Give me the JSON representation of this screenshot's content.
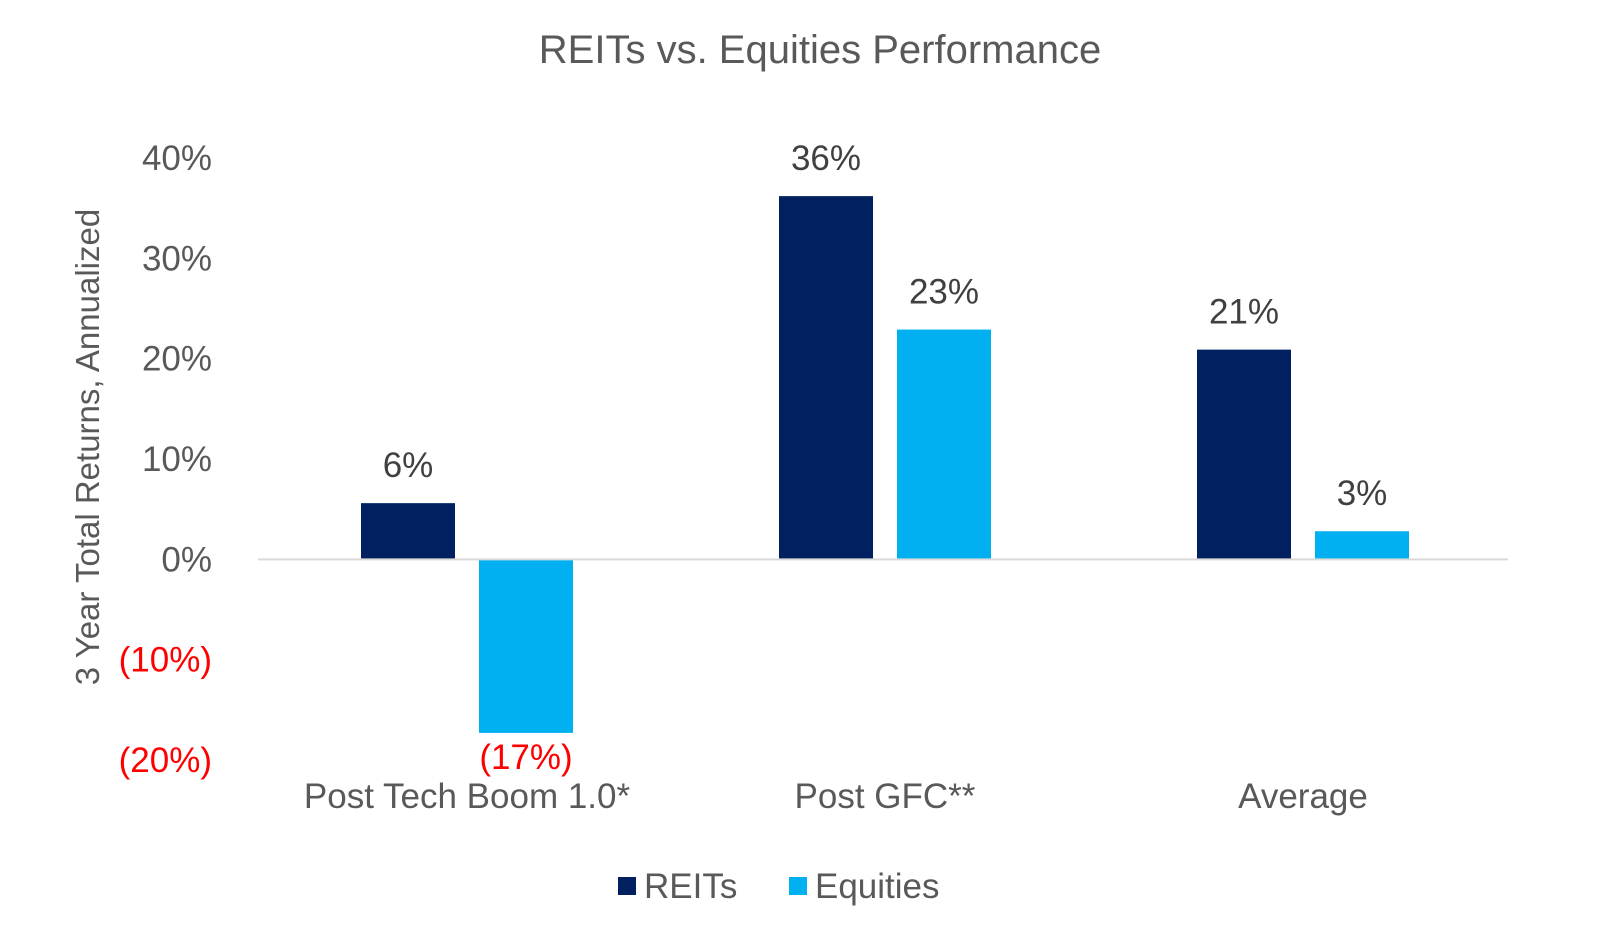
{
  "chart_data": {
    "type": "bar",
    "title": "REITs vs. Equities Performance",
    "ylabel": "3 Year Total Returns, Annualized",
    "xlabel": "",
    "categories": [
      "Post Tech Boom 1.0*",
      "Post GFC**",
      "Average"
    ],
    "series": [
      {
        "name": "REITs",
        "color": "#002060",
        "values": [
          5.6,
          36.2,
          20.9
        ],
        "labels": [
          "6%",
          "36%",
          "21%"
        ]
      },
      {
        "name": "Equities",
        "color": "#00B0F0",
        "values": [
          -17.3,
          22.9,
          2.8
        ],
        "labels": [
          "(17%)",
          "23%",
          "3%"
        ]
      }
    ],
    "ylim": [
      -20,
      40
    ],
    "yticks": [
      {
        "value": 40,
        "label": "40%"
      },
      {
        "value": 30,
        "label": "30%"
      },
      {
        "value": 20,
        "label": "20%"
      },
      {
        "value": 10,
        "label": "10%"
      },
      {
        "value": 0,
        "label": "0%"
      },
      {
        "value": -10,
        "label": "(10%)"
      },
      {
        "value": -20,
        "label": "(20%)"
      }
    ],
    "negative_color": "#FF0000",
    "text_color": "#595959",
    "label_color": "#404040",
    "axis_color": "#D9D9D9",
    "grid": false,
    "legend_position": "bottom"
  }
}
